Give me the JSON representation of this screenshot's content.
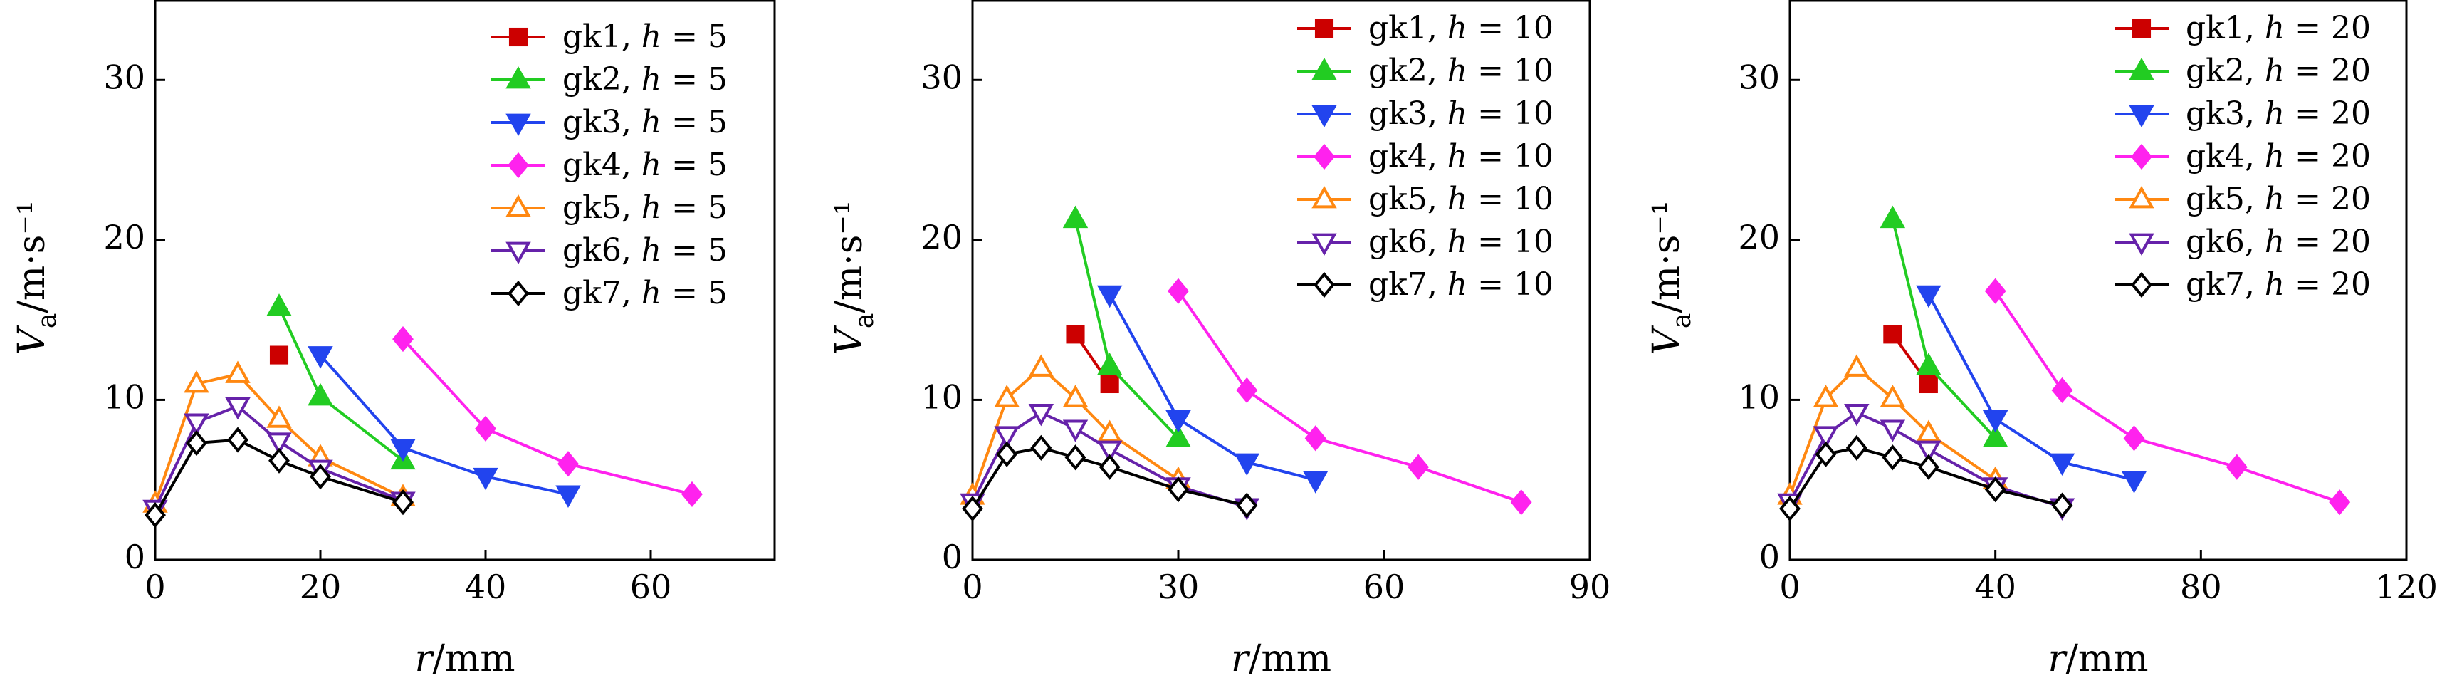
{
  "chart_data": [
    {
      "type": "line",
      "panel": "h=5",
      "xlabel": "r/mm",
      "ylabel": "Va/m·s⁻¹",
      "xlim": [
        0,
        75
      ],
      "ylim": [
        0,
        35
      ],
      "xticks": [
        0,
        20,
        40,
        60
      ],
      "yticks": [
        0,
        10,
        20,
        30
      ],
      "legend_position": "top-right",
      "series": [
        {
          "name": "gk1, h = 5",
          "color": "#cc0000",
          "marker": "square",
          "x": [
            15
          ],
          "y": [
            12.8
          ]
        },
        {
          "name": "gk2, h = 5",
          "color": "#22cc22",
          "marker": "triangle-up",
          "x": [
            15,
            20,
            30
          ],
          "y": [
            15.8,
            10.2,
            6.2
          ]
        },
        {
          "name": "gk3, h = 5",
          "color": "#2244ee",
          "marker": "triangle-down",
          "x": [
            20,
            30,
            40,
            50
          ],
          "y": [
            12.8,
            7.0,
            5.2,
            4.1
          ]
        },
        {
          "name": "gk4, h = 5",
          "color": "#ff22ee",
          "marker": "diamond",
          "x": [
            30,
            40,
            50,
            65
          ],
          "y": [
            13.8,
            8.2,
            6.0,
            4.1
          ]
        },
        {
          "name": "gk5, h = 5",
          "color": "#ff8811",
          "marker": "triangle-up-open",
          "x": [
            0,
            5,
            10,
            15,
            20,
            30
          ],
          "y": [
            3.5,
            11.0,
            11.6,
            8.8,
            6.4,
            3.9
          ]
        },
        {
          "name": "gk6, h = 5",
          "color": "#6622aa",
          "marker": "triangle-down-open",
          "x": [
            0,
            5,
            10,
            15,
            20,
            30
          ],
          "y": [
            3.2,
            8.6,
            9.6,
            7.4,
            5.7,
            3.7
          ]
        },
        {
          "name": "gk7, h = 5",
          "color": "#000000",
          "marker": "diamond-open",
          "x": [
            0,
            5,
            10,
            15,
            20,
            30
          ],
          "y": [
            2.8,
            7.3,
            7.5,
            6.2,
            5.2,
            3.6
          ]
        }
      ]
    },
    {
      "type": "line",
      "panel": "h=10",
      "xlabel": "r/mm",
      "ylabel": "Va/m·s⁻¹",
      "xlim": [
        0,
        90
      ],
      "ylim": [
        0,
        35
      ],
      "xticks": [
        0,
        30,
        60,
        90
      ],
      "yticks": [
        0,
        10,
        20,
        30
      ],
      "legend_position": "top-right",
      "series": [
        {
          "name": "gk1, h = 10",
          "color": "#cc0000",
          "marker": "square",
          "x": [
            15,
            20
          ],
          "y": [
            14.1,
            11.0
          ]
        },
        {
          "name": "gk2, h = 10",
          "color": "#22cc22",
          "marker": "triangle-up",
          "x": [
            15,
            20,
            30
          ],
          "y": [
            21.3,
            12.1,
            7.6
          ]
        },
        {
          "name": "gk3, h = 10",
          "color": "#2244ee",
          "marker": "triangle-down",
          "x": [
            20,
            30,
            40,
            50
          ],
          "y": [
            16.6,
            8.8,
            6.1,
            5.0
          ]
        },
        {
          "name": "gk4, h = 10",
          "color": "#ff22ee",
          "marker": "diamond",
          "x": [
            30,
            40,
            50,
            65,
            80
          ],
          "y": [
            16.8,
            10.6,
            7.6,
            5.8,
            3.6
          ]
        },
        {
          "name": "gk5, h = 10",
          "color": "#ff8811",
          "marker": "triangle-up-open",
          "x": [
            0,
            5,
            10,
            15,
            20,
            30
          ],
          "y": [
            4.0,
            10.1,
            12.0,
            10.1,
            7.9,
            5.0
          ]
        },
        {
          "name": "gk6, h = 10",
          "color": "#6622aa",
          "marker": "triangle-down-open",
          "x": [
            0,
            5,
            10,
            15,
            20,
            30,
            40
          ],
          "y": [
            3.6,
            7.8,
            9.2,
            8.2,
            6.9,
            4.6,
            3.3
          ]
        },
        {
          "name": "gk7, h = 10",
          "color": "#000000",
          "marker": "diamond-open",
          "x": [
            0,
            5,
            10,
            15,
            20,
            30,
            40
          ],
          "y": [
            3.2,
            6.6,
            7.0,
            6.4,
            5.8,
            4.4,
            3.4
          ]
        }
      ]
    },
    {
      "type": "line",
      "panel": "h=20",
      "xlabel": "r/mm",
      "ylabel": "Va/m·s⁻¹",
      "xlim": [
        0,
        120
      ],
      "ylim": [
        0,
        35
      ],
      "xticks": [
        0,
        40,
        80,
        120
      ],
      "yticks": [
        0,
        10,
        20,
        30
      ],
      "legend_position": "top-right",
      "series": [
        {
          "name": "gk1, h = 20",
          "color": "#cc0000",
          "marker": "square",
          "x": [
            20,
            27
          ],
          "y": [
            14.1,
            11.0
          ]
        },
        {
          "name": "gk2, h = 20",
          "color": "#22cc22",
          "marker": "triangle-up",
          "x": [
            20,
            27,
            40
          ],
          "y": [
            21.3,
            12.1,
            7.6
          ]
        },
        {
          "name": "gk3, h = 20",
          "color": "#2244ee",
          "marker": "triangle-down",
          "x": [
            27,
            40,
            53,
            67
          ],
          "y": [
            16.6,
            8.8,
            6.1,
            5.0
          ]
        },
        {
          "name": "gk4, h = 20",
          "color": "#ff22ee",
          "marker": "diamond",
          "x": [
            40,
            53,
            67,
            87,
            107
          ],
          "y": [
            16.8,
            10.6,
            7.6,
            5.8,
            3.6
          ]
        },
        {
          "name": "gk5, h = 20",
          "color": "#ff8811",
          "marker": "triangle-up-open",
          "x": [
            0,
            7,
            13,
            20,
            27,
            40
          ],
          "y": [
            4.0,
            10.1,
            12.0,
            10.1,
            7.9,
            5.0
          ]
        },
        {
          "name": "gk6, h = 20",
          "color": "#6622aa",
          "marker": "triangle-down-open",
          "x": [
            0,
            7,
            13,
            20,
            27,
            40,
            53
          ],
          "y": [
            3.6,
            7.8,
            9.2,
            8.2,
            6.9,
            4.6,
            3.3
          ]
        },
        {
          "name": "gk7, h = 20",
          "color": "#000000",
          "marker": "diamond-open",
          "x": [
            0,
            7,
            13,
            20,
            27,
            40,
            53
          ],
          "y": [
            3.2,
            6.6,
            7.0,
            6.4,
            5.8,
            4.4,
            3.4
          ]
        }
      ]
    }
  ]
}
